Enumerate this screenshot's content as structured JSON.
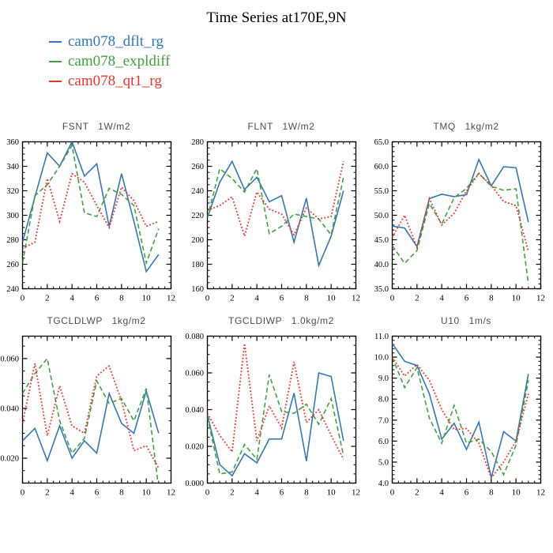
{
  "page": {
    "title": "Time Series at170E,9N"
  },
  "legend": {
    "items": [
      {
        "label": "cam078_dflt_rg",
        "color": "#3377b8",
        "line_style": "solid"
      },
      {
        "label": "cam078_expldiff",
        "color": "#3da33d",
        "line_style": "dashed"
      },
      {
        "label": "cam078_qt1_rg",
        "color": "#ee3328",
        "line_style": "dotted"
      }
    ]
  },
  "chart_data": [
    {
      "type": "line",
      "title": "FSNT   1W/m2",
      "x": [
        0,
        1,
        2,
        3,
        4,
        5,
        6,
        7,
        8,
        9,
        10,
        11
      ],
      "xlim": [
        0,
        12
      ],
      "xticks": [
        0,
        2,
        4,
        6,
        8,
        10,
        12
      ],
      "xtick_labels": [
        "0",
        "2",
        "4",
        "6",
        "8",
        "10",
        "12"
      ],
      "xminor_divisions": 4,
      "ylim": [
        240,
        360
      ],
      "yticks": [
        240,
        260,
        280,
        300,
        320,
        340,
        360
      ],
      "ytick_labels": [
        "240",
        "260",
        "280",
        "300",
        "320",
        "340",
        "360"
      ],
      "yminor_divisions": 4,
      "series": [
        {
          "name": "cam078_dflt_rg",
          "values": [
            278,
            315,
            351,
            340,
            360,
            332,
            342,
            291,
            334,
            295,
            254,
            268
          ]
        },
        {
          "name": "cam078_expldiff",
          "values": [
            261,
            316,
            325,
            340,
            357,
            302,
            299,
            322,
            317,
            308,
            261,
            289
          ]
        },
        {
          "name": "cam078_qt1_rg",
          "values": [
            273,
            278,
            330,
            295,
            334,
            327,
            308,
            290,
            323,
            312,
            291,
            295
          ]
        }
      ]
    },
    {
      "type": "line",
      "title": "FLNT   1W/m2",
      "x": [
        0,
        1,
        2,
        3,
        4,
        5,
        6,
        7,
        8,
        9,
        10,
        11
      ],
      "xlim": [
        0,
        12
      ],
      "xticks": [
        0,
        2,
        4,
        6,
        8,
        10,
        12
      ],
      "xtick_labels": [
        "0",
        "2",
        "4",
        "6",
        "8",
        "10",
        "12"
      ],
      "xminor_divisions": 4,
      "ylim": [
        160,
        280
      ],
      "yticks": [
        160,
        180,
        200,
        220,
        240,
        260,
        280
      ],
      "ytick_labels": [
        "160",
        "180",
        "200",
        "220",
        "240",
        "260",
        "280"
      ],
      "yminor_divisions": 4,
      "series": [
        {
          "name": "cam078_dflt_rg",
          "values": [
            218,
            247,
            264,
            241,
            251,
            231,
            236,
            198,
            234,
            179,
            203,
            240
          ]
        },
        {
          "name": "cam078_expldiff",
          "values": [
            218,
            258,
            250,
            239,
            258,
            205,
            211,
            221,
            219,
            217,
            204,
            251
          ]
        },
        {
          "name": "cam078_qt1_rg",
          "values": [
            224,
            228,
            235,
            203,
            239,
            225,
            221,
            204,
            226,
            217,
            219,
            264
          ]
        }
      ]
    },
    {
      "type": "line",
      "title": "TMQ   1kg/m2",
      "x": [
        0,
        1,
        2,
        3,
        4,
        5,
        6,
        7,
        8,
        9,
        10,
        11
      ],
      "xlim": [
        0,
        12
      ],
      "xticks": [
        0,
        2,
        4,
        6,
        8,
        10,
        12
      ],
      "xtick_labels": [
        "0",
        "2",
        "4",
        "6",
        "8",
        "10",
        "12"
      ],
      "xminor_divisions": 4,
      "ylim": [
        35.0,
        65.0
      ],
      "yticks": [
        35,
        40,
        45,
        50,
        55,
        60,
        65
      ],
      "ytick_labels": [
        "35.0",
        "40.0",
        "45.0",
        "50.0",
        "55.0",
        "60.0",
        "65.0"
      ],
      "yminor_divisions": 5,
      "series": [
        {
          "name": "cam078_dflt_rg",
          "values": [
            47.8,
            47.4,
            43.6,
            53.4,
            54.3,
            53.8,
            54.2,
            61.4,
            56.0,
            59.9,
            59.7,
            48.6
          ]
        },
        {
          "name": "cam078_expldiff",
          "values": [
            43.8,
            40.2,
            42.8,
            52.4,
            48.2,
            53.6,
            55.5,
            58.6,
            55.9,
            55.1,
            55.4,
            36.0
          ]
        },
        {
          "name": "cam078_qt1_rg",
          "values": [
            45.5,
            50.0,
            43.4,
            53.4,
            48.0,
            50.4,
            55.0,
            58.5,
            56.1,
            52.8,
            52.0,
            42.6
          ]
        }
      ]
    },
    {
      "type": "line",
      "title": "TGCLDLWP   1kg/m2",
      "x": [
        0,
        1,
        2,
        3,
        4,
        5,
        6,
        7,
        8,
        9,
        10,
        11
      ],
      "xlim": [
        0,
        12
      ],
      "xticks": [
        0,
        2,
        4,
        6,
        8,
        10,
        12
      ],
      "xtick_labels": [
        "0",
        "2",
        "4",
        "6",
        "8",
        "10",
        "12"
      ],
      "xminor_divisions": 4,
      "ylim": [
        0.01,
        0.069
      ],
      "yticks": [
        0.02,
        0.04,
        0.06
      ],
      "ytick_labels": [
        "0.020",
        "0.040",
        "0.060"
      ],
      "yminor_divisions": 4,
      "series": [
        {
          "name": "cam078_dflt_rg",
          "values": [
            0.027,
            0.032,
            0.019,
            0.033,
            0.02,
            0.027,
            0.022,
            0.046,
            0.034,
            0.03,
            0.047,
            0.03
          ]
        },
        {
          "name": "cam078_expldiff",
          "values": [
            0.046,
            0.054,
            0.06,
            0.035,
            0.022,
            0.028,
            0.051,
            0.042,
            0.044,
            0.035,
            0.048,
            0.008
          ]
        },
        {
          "name": "cam078_qt1_rg",
          "values": [
            0.034,
            0.058,
            0.029,
            0.049,
            0.033,
            0.03,
            0.053,
            0.057,
            0.043,
            0.023,
            0.025,
            0.016
          ]
        }
      ]
    },
    {
      "type": "line",
      "title": "TGCLDIWP   1.0kg/m2",
      "x": [
        0,
        1,
        2,
        3,
        4,
        5,
        6,
        7,
        8,
        9,
        10,
        11
      ],
      "xlim": [
        0,
        12
      ],
      "xticks": [
        0,
        2,
        4,
        6,
        8,
        10,
        12
      ],
      "xtick_labels": [
        "0",
        "2",
        "4",
        "6",
        "8",
        "10",
        "12"
      ],
      "xminor_divisions": 4,
      "ylim": [
        0.0,
        0.08
      ],
      "yticks": [
        0.0,
        0.02,
        0.04,
        0.06,
        0.08
      ],
      "ytick_labels": [
        "0.000",
        "0.020",
        "0.040",
        "0.060",
        "0.080"
      ],
      "yminor_divisions": 4,
      "series": [
        {
          "name": "cam078_dflt_rg",
          "values": [
            0.037,
            0.01,
            0.004,
            0.016,
            0.011,
            0.024,
            0.024,
            0.049,
            0.012,
            0.06,
            0.058,
            0.023
          ]
        },
        {
          "name": "cam078_expldiff",
          "values": [
            0.036,
            0.005,
            0.006,
            0.021,
            0.013,
            0.059,
            0.039,
            0.038,
            0.043,
            0.032,
            0.046,
            0.015
          ]
        },
        {
          "name": "cam078_qt1_rg",
          "values": [
            0.038,
            0.026,
            0.017,
            0.076,
            0.023,
            0.042,
            0.03,
            0.066,
            0.033,
            0.04,
            0.026,
            0.013
          ]
        }
      ]
    },
    {
      "type": "line",
      "title": "U10   1m/s",
      "x": [
        0,
        1,
        2,
        3,
        4,
        5,
        6,
        7,
        8,
        9,
        10,
        11
      ],
      "xlim": [
        0,
        12
      ],
      "xticks": [
        0,
        2,
        4,
        6,
        8,
        10,
        12
      ],
      "xtick_labels": [
        "0",
        "2",
        "4",
        "6",
        "8",
        "10",
        "12"
      ],
      "xminor_divisions": 4,
      "ylim": [
        4.0,
        11.0
      ],
      "yticks": [
        4,
        5,
        6,
        7,
        8,
        9,
        10,
        11
      ],
      "ytick_labels": [
        "4.0",
        "5.0",
        "6.0",
        "7.0",
        "8.0",
        "9.0",
        "10.0",
        "11.0"
      ],
      "yminor_divisions": 5,
      "series": [
        {
          "name": "cam078_dflt_rg",
          "values": [
            10.65,
            9.8,
            9.6,
            8.25,
            6.1,
            6.85,
            5.6,
            6.9,
            4.25,
            6.45,
            6.0,
            9.2
          ]
        },
        {
          "name": "cam078_expldiff",
          "values": [
            10.0,
            8.55,
            9.5,
            7.1,
            5.9,
            7.7,
            5.9,
            6.1,
            5.5,
            4.4,
            5.8,
            8.9
          ]
        },
        {
          "name": "cam078_qt1_rg",
          "values": [
            10.0,
            9.1,
            9.65,
            8.9,
            7.5,
            6.55,
            6.6,
            5.9,
            4.25,
            5.0,
            6.0,
            8.25
          ]
        }
      ]
    }
  ]
}
